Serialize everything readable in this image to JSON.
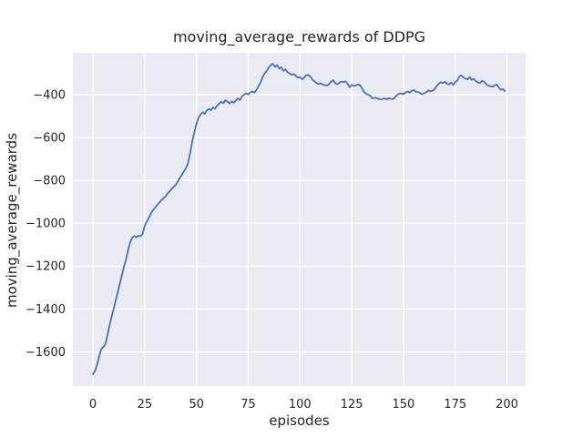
{
  "chart_data": {
    "type": "line",
    "title": "moving_average_rewards of DDPG",
    "xlabel": "episodes",
    "ylabel": "moving_average_rewards",
    "xticks": [
      0,
      25,
      50,
      75,
      100,
      125,
      150,
      175,
      200
    ],
    "yticks": [
      -400,
      -600,
      -800,
      -1000,
      -1200,
      -1400,
      -1600
    ],
    "xlim": [
      -9.7,
      209.0
    ],
    "ylim": [
      -1760,
      -205
    ],
    "grid": true,
    "legend_position": "none",
    "colors": {
      "line": "#4c72b0",
      "plot_bg": "#eaeaf2",
      "grid": "#ffffff",
      "figure_bg": "#ffffff",
      "text": "#262626"
    },
    "series": [
      {
        "name": "moving_average_rewards",
        "x": [
          0,
          1,
          2,
          3,
          4,
          5,
          6,
          7,
          8,
          9,
          10,
          11,
          12,
          13,
          14,
          15,
          16,
          17,
          18,
          19,
          20,
          21,
          22,
          23,
          24,
          25,
          26,
          27,
          28,
          29,
          30,
          31,
          32,
          33,
          34,
          35,
          36,
          37,
          38,
          39,
          40,
          41,
          42,
          43,
          44,
          45,
          46,
          47,
          48,
          49,
          50,
          51,
          52,
          53,
          54,
          55,
          56,
          57,
          58,
          59,
          60,
          61,
          62,
          63,
          64,
          65,
          66,
          67,
          68,
          69,
          70,
          71,
          72,
          73,
          74,
          75,
          76,
          77,
          78,
          79,
          80,
          81,
          82,
          83,
          84,
          85,
          86,
          87,
          88,
          89,
          90,
          91,
          92,
          93,
          94,
          95,
          96,
          97,
          98,
          99,
          100,
          101,
          102,
          103,
          104,
          105,
          106,
          107,
          108,
          109,
          110,
          111,
          112,
          113,
          114,
          115,
          116,
          117,
          118,
          119,
          120,
          121,
          122,
          123,
          124,
          125,
          126,
          127,
          128,
          129,
          130,
          131,
          132,
          133,
          134,
          135,
          136,
          137,
          138,
          139,
          140,
          141,
          142,
          143,
          144,
          145,
          146,
          147,
          148,
          149,
          150,
          151,
          152,
          153,
          154,
          155,
          156,
          157,
          158,
          159,
          160,
          161,
          162,
          163,
          164,
          165,
          166,
          167,
          168,
          169,
          170,
          171,
          172,
          173,
          174,
          175,
          176,
          177,
          178,
          179,
          180,
          181,
          182,
          183,
          184,
          185,
          186,
          187,
          188,
          189,
          190,
          191,
          192,
          193,
          194,
          195,
          196,
          197,
          198,
          199
        ],
        "values": [
          -1705,
          -1690,
          -1660,
          -1622,
          -1588,
          -1578,
          -1565,
          -1522,
          -1478,
          -1437,
          -1400,
          -1362,
          -1322,
          -1282,
          -1242,
          -1203,
          -1168,
          -1125,
          -1090,
          -1068,
          -1060,
          -1066,
          -1058,
          -1061,
          -1050,
          -1012,
          -993,
          -975,
          -955,
          -940,
          -928,
          -915,
          -905,
          -893,
          -884,
          -876,
          -862,
          -852,
          -840,
          -830,
          -822,
          -806,
          -788,
          -773,
          -758,
          -742,
          -718,
          -668,
          -618,
          -575,
          -535,
          -508,
          -492,
          -482,
          -490,
          -474,
          -467,
          -473,
          -460,
          -466,
          -452,
          -442,
          -433,
          -440,
          -426,
          -433,
          -441,
          -432,
          -438,
          -428,
          -418,
          -426,
          -408,
          -400,
          -394,
          -399,
          -390,
          -385,
          -391,
          -378,
          -360,
          -344,
          -318,
          -300,
          -290,
          -272,
          -262,
          -257,
          -271,
          -262,
          -279,
          -272,
          -289,
          -282,
          -296,
          -301,
          -308,
          -304,
          -313,
          -321,
          -318,
          -328,
          -322,
          -310,
          -308,
          -316,
          -330,
          -338,
          -346,
          -351,
          -347,
          -353,
          -356,
          -358,
          -352,
          -340,
          -333,
          -346,
          -352,
          -346,
          -340,
          -342,
          -338,
          -350,
          -366,
          -355,
          -359,
          -358,
          -352,
          -356,
          -371,
          -388,
          -396,
          -401,
          -406,
          -418,
          -415,
          -417,
          -420,
          -423,
          -420,
          -418,
          -422,
          -417,
          -420,
          -421,
          -412,
          -400,
          -396,
          -394,
          -398,
          -390,
          -386,
          -391,
          -382,
          -379,
          -386,
          -388,
          -393,
          -398,
          -394,
          -390,
          -380,
          -385,
          -382,
          -376,
          -360,
          -350,
          -342,
          -347,
          -340,
          -348,
          -353,
          -344,
          -355,
          -342,
          -335,
          -316,
          -310,
          -320,
          -326,
          -329,
          -318,
          -331,
          -326,
          -338,
          -343,
          -346,
          -336,
          -341,
          -352,
          -358,
          -361,
          -363,
          -357,
          -353,
          -366,
          -378,
          -374,
          -383
        ]
      }
    ]
  }
}
